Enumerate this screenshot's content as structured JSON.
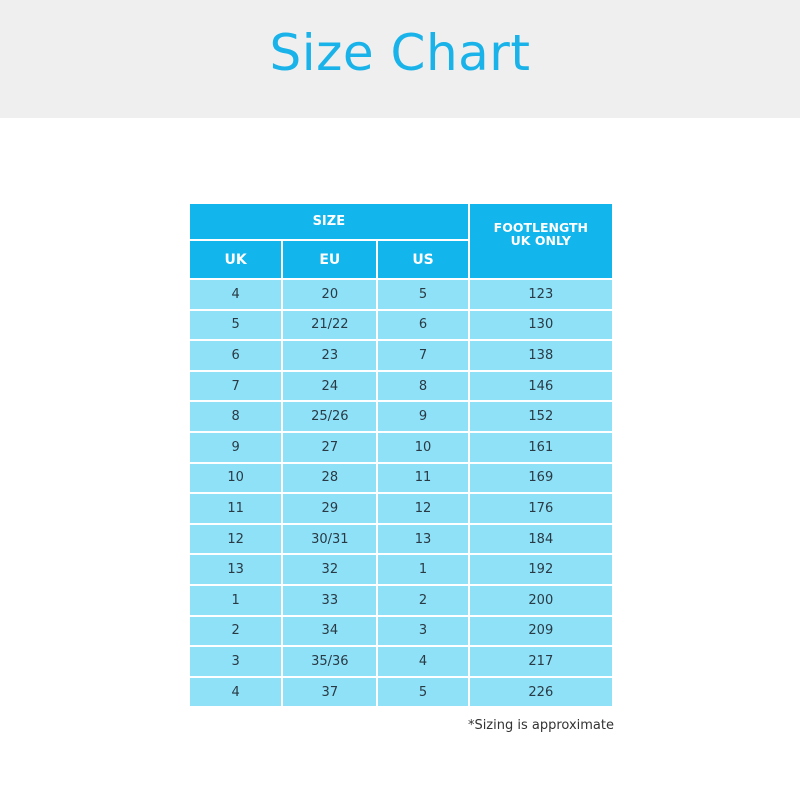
{
  "title": "Size Chart",
  "table": {
    "group_header": "SIZE",
    "headers": [
      "UK",
      "EU",
      "US"
    ],
    "footlength_header": [
      "FOOTLENGTH",
      "UK ONLY"
    ],
    "rows": [
      [
        "4",
        "20",
        "5",
        "123"
      ],
      [
        "5",
        "21/22",
        "6",
        "130"
      ],
      [
        "6",
        "23",
        "7",
        "138"
      ],
      [
        "7",
        "24",
        "8",
        "146"
      ],
      [
        "8",
        "25/26",
        "9",
        "152"
      ],
      [
        "9",
        "27",
        "10",
        "161"
      ],
      [
        "10",
        "28",
        "11",
        "169"
      ],
      [
        "11",
        "29",
        "12",
        "176"
      ],
      [
        "12",
        "30/31",
        "13",
        "184"
      ],
      [
        "13",
        "32",
        "1",
        "192"
      ],
      [
        "1",
        "33",
        "2",
        "200"
      ],
      [
        "2",
        "34",
        "3",
        "209"
      ],
      [
        "3",
        "35/36",
        "4",
        "217"
      ],
      [
        "4",
        "37",
        "5",
        "226"
      ]
    ]
  },
  "footnote": "*Sizing is approximate",
  "colors": {
    "accent": "#19b3ea",
    "header_bg": "#12b5ec",
    "row_bg": "#8fe1f7",
    "band": "#efefef"
  }
}
